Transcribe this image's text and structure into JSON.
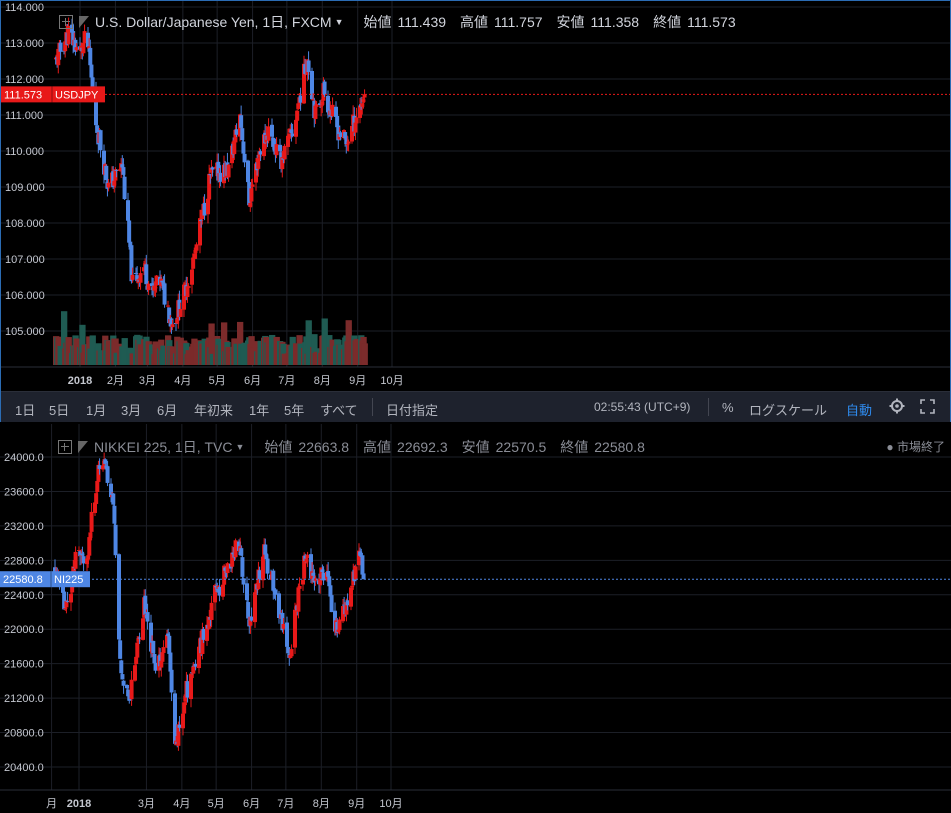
{
  "colors": {
    "up": "#e81919",
    "down": "#4e86e4",
    "vol_up": "#7b2b2b",
    "vol_down": "#1f5b52",
    "bg": "#000000",
    "axis_text": "#c4c7cf",
    "accent": "#2f8cf0",
    "last_usdjpy": "#e81919",
    "last_nikkei": "#4e86e4"
  },
  "top": {
    "symbol": "U.S. Dollar/Japanese Yen, 1日, FXCM",
    "open_label": "始値",
    "open": "111.439",
    "high_label": "高値",
    "high": "111.757",
    "low_label": "安値",
    "low": "111.358",
    "close_label": "終値",
    "close": "111.573",
    "last_price": "111.573",
    "last_tag": "USDJPY"
  },
  "bottom": {
    "symbol": "NIKKEI 225, 1日, TVC",
    "open_label": "始値",
    "open": "22663.8",
    "high_label": "高値",
    "high": "22692.3",
    "low_label": "安値",
    "low": "22570.5",
    "close_label": "終値",
    "close": "22580.8",
    "last_price": "22580.8",
    "last_tag": "NI225",
    "market_status": "● 市場終了"
  },
  "toolbar": {
    "ranges": [
      "1日",
      "5日",
      "1月",
      "3月",
      "6月",
      "年初来",
      "1年",
      "5年",
      "すべて"
    ],
    "goto_date": "日付指定",
    "clock": "02:55:43 (UTC+9)",
    "percent": "%",
    "log_scale": "ログスケール",
    "auto": "自動",
    "settings_icon": "gear-icon",
    "fullscreen_icon": "fullscreen-icon"
  },
  "chart_data": [
    {
      "type": "candlestick",
      "title": "U.S. Dollar/Japanese Yen, 1日, FXCM",
      "y_ticks": [
        "114.000",
        "113.000",
        "112.000",
        "111.000",
        "110.000",
        "109.000",
        "108.000",
        "107.000",
        "106.000",
        "105.000"
      ],
      "ylim": [
        104.1,
        114.0
      ],
      "x_ticks": [
        "2018",
        "2月",
        "3月",
        "4月",
        "5月",
        "6月",
        "7月",
        "8月",
        "9月",
        "10月"
      ],
      "last": 111.573,
      "approx_close_path": [
        {
          "date": "2017-12-11",
          "close": 112.5
        },
        {
          "date": "2017-12-22",
          "close": 113.3
        },
        {
          "date": "2018-01-01",
          "close": 112.7
        },
        {
          "date": "2018-01-07",
          "close": 113.2
        },
        {
          "date": "2018-01-15",
          "close": 110.8
        },
        {
          "date": "2018-01-26",
          "close": 109.0
        },
        {
          "date": "2018-02-07",
          "close": 109.6
        },
        {
          "date": "2018-02-16",
          "close": 106.3
        },
        {
          "date": "2018-02-26",
          "close": 106.8
        },
        {
          "date": "2018-03-05",
          "close": 106.0
        },
        {
          "date": "2018-03-12",
          "close": 106.4
        },
        {
          "date": "2018-03-23",
          "close": 105.2
        },
        {
          "date": "2018-04-02",
          "close": 106.0
        },
        {
          "date": "2018-04-12",
          "close": 107.2
        },
        {
          "date": "2018-04-25",
          "close": 109.3
        },
        {
          "date": "2018-05-11",
          "close": 109.5
        },
        {
          "date": "2018-05-21",
          "close": 111.0
        },
        {
          "date": "2018-05-29",
          "close": 108.6
        },
        {
          "date": "2018-06-07",
          "close": 110.0
        },
        {
          "date": "2018-06-15",
          "close": 110.6
        },
        {
          "date": "2018-06-25",
          "close": 109.7
        },
        {
          "date": "2018-07-06",
          "close": 110.5
        },
        {
          "date": "2018-07-19",
          "close": 112.6
        },
        {
          "date": "2018-07-26",
          "close": 111.0
        },
        {
          "date": "2018-08-02",
          "close": 111.7
        },
        {
          "date": "2018-08-13",
          "close": 110.7
        },
        {
          "date": "2018-08-22",
          "close": 110.2
        },
        {
          "date": "2018-08-31",
          "close": 111.0
        },
        {
          "date": "2018-09-07",
          "close": 111.573
        }
      ]
    },
    {
      "type": "candlestick",
      "title": "NIKKEI 225, 1日, TVC",
      "y_ticks": [
        "24000.0",
        "23600.0",
        "23200.0",
        "22800.0",
        "22400.0",
        "22000.0",
        "21600.0",
        "21200.0",
        "20800.0",
        "20400.0"
      ],
      "ylim": [
        20200,
        24200
      ],
      "x_ticks": [
        "月",
        "2018",
        "3月",
        "4月",
        "5月",
        "6月",
        "7月",
        "8月",
        "9月",
        "10月"
      ],
      "last": 22580.8,
      "approx_close_path": [
        {
          "date": "2017-12-11",
          "close": 22700
        },
        {
          "date": "2017-12-20",
          "close": 22200
        },
        {
          "date": "2017-12-29",
          "close": 22800
        },
        {
          "date": "2018-01-09",
          "close": 22900
        },
        {
          "date": "2018-01-17",
          "close": 23800
        },
        {
          "date": "2018-01-23",
          "close": 23900
        },
        {
          "date": "2018-01-31",
          "close": 23500
        },
        {
          "date": "2018-02-06",
          "close": 21600
        },
        {
          "date": "2018-02-14",
          "close": 21200
        },
        {
          "date": "2018-02-27",
          "close": 22300
        },
        {
          "date": "2018-03-09",
          "close": 21500
        },
        {
          "date": "2018-03-20",
          "close": 21900
        },
        {
          "date": "2018-03-26",
          "close": 20600
        },
        {
          "date": "2018-04-03",
          "close": 21200
        },
        {
          "date": "2018-04-17",
          "close": 21800
        },
        {
          "date": "2018-04-30",
          "close": 22400
        },
        {
          "date": "2018-05-21",
          "close": 23000
        },
        {
          "date": "2018-05-30",
          "close": 22100
        },
        {
          "date": "2018-06-12",
          "close": 22900
        },
        {
          "date": "2018-06-22",
          "close": 22400
        },
        {
          "date": "2018-07-04",
          "close": 21700
        },
        {
          "date": "2018-07-13",
          "close": 22500
        },
        {
          "date": "2018-07-18",
          "close": 22800
        },
        {
          "date": "2018-07-26",
          "close": 22600
        },
        {
          "date": "2018-08-06",
          "close": 22600
        },
        {
          "date": "2018-08-14",
          "close": 22000
        },
        {
          "date": "2018-08-24",
          "close": 22300
        },
        {
          "date": "2018-09-03",
          "close": 22900
        },
        {
          "date": "2018-09-07",
          "close": 22580.8
        }
      ]
    }
  ]
}
